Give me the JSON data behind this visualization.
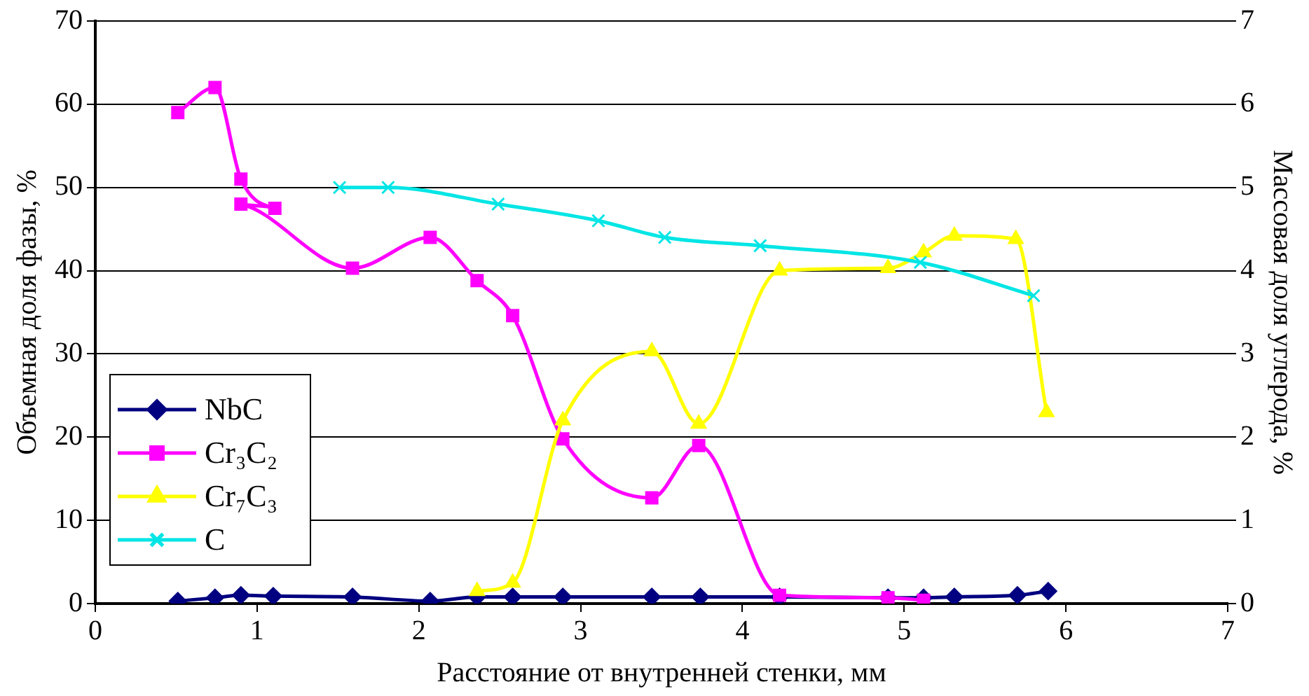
{
  "chart_data": {
    "type": "line",
    "xlabel": "Расстояние от внутренней стенки, мм",
    "ylabel": "Объемная доля фазы, %",
    "y2label": "Массовая доля углерода, %",
    "xlim": [
      0,
      7
    ],
    "xticks": [
      0,
      1,
      2,
      3,
      4,
      5,
      6,
      7
    ],
    "ylim": [
      0,
      70
    ],
    "yticks": [
      0,
      10,
      20,
      30,
      40,
      50,
      60,
      70
    ],
    "y2lim": [
      0,
      7
    ],
    "y2ticks": [
      0,
      1,
      2,
      3,
      4,
      5,
      6,
      7
    ],
    "grid": "y",
    "legend": "bottom left",
    "series": [
      {
        "name": "NbC",
        "color": "#000080",
        "marker": "diamond",
        "x": [
          0.51,
          0.74,
          0.9,
          1.1,
          1.59,
          2.07,
          2.36,
          2.58,
          2.89,
          3.44,
          3.74,
          4.23,
          4.9,
          5.12,
          5.31,
          5.7,
          5.89
        ],
        "values": [
          0.3,
          0.7,
          1.0,
          0.9,
          0.8,
          0.3,
          0.8,
          0.8,
          0.8,
          0.8,
          0.8,
          0.8,
          0.7,
          0.7,
          0.8,
          1.0,
          1.5
        ]
      },
      {
        "name": "Cr₃C₂",
        "color": "#ff00ff",
        "marker": "square",
        "x": [
          0.51,
          0.74,
          0.9,
          1.11,
          0.9,
          1.59,
          2.07,
          2.36,
          2.58,
          2.89,
          3.44,
          3.73,
          4.23,
          4.9,
          5.12
        ],
        "values": [
          59,
          62,
          51,
          47.5,
          48,
          40.3,
          44,
          38.8,
          34.6,
          19.8,
          12.7,
          19,
          1,
          0.7,
          0.4
        ]
      },
      {
        "name": "Cr₇C₃",
        "color": "#ffff00",
        "marker": "triangle",
        "x": [
          2.36,
          2.58,
          2.89,
          3.44,
          3.73,
          4.23,
          4.9,
          5.12,
          5.31,
          5.69,
          5.88
        ],
        "values": [
          1.5,
          2.5,
          22,
          30.3,
          21.6,
          40,
          40.3,
          42.2,
          44.2,
          43.8,
          23
        ]
      },
      {
        "name": "C",
        "color": "#00e5e5",
        "marker": "cross",
        "axis": "y2",
        "x": [
          1.51,
          1.81,
          2.49,
          3.11,
          3.52,
          4.11,
          5.1,
          5.8
        ],
        "values": [
          5.0,
          5.0,
          4.8,
          4.6,
          4.4,
          4.3,
          4.1,
          3.7
        ]
      }
    ]
  }
}
